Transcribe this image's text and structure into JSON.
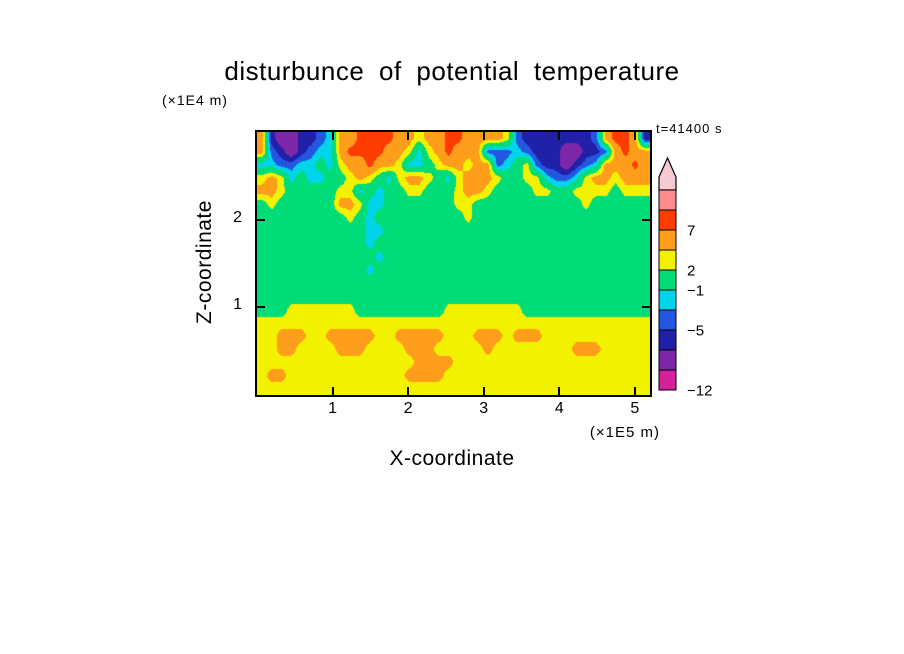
{
  "title": "disturbunce of potential temperature",
  "time_label": "t=41400 s",
  "axes": {
    "x_label": "X-coordinate",
    "x_unit": "(×1E5 m)",
    "y_label": "Z-coordinate",
    "y_unit": "(×1E4 m)",
    "x_ticks": [
      1,
      2,
      3,
      4,
      5
    ],
    "y_ticks": [
      1,
      2
    ]
  },
  "chart_data": {
    "type": "heatmap",
    "title": "disturbunce of potential temperature",
    "xlabel": "X-coordinate (×1E5 m)",
    "ylabel": "Z-coordinate (×1E4 m)",
    "time_label": "t=41400 s",
    "x_range": [
      0,
      5.2
    ],
    "z_range": [
      0,
      3.0
    ],
    "grid_on": false,
    "legend_position": "right-colorbar",
    "levels": [
      -12,
      -9,
      -7,
      -5,
      -3,
      -1,
      2,
      4,
      7,
      9,
      12
    ],
    "level_colors": [
      "#E6007E",
      "#D4219A",
      "#7D26A8",
      "#2020A8",
      "#2456E0",
      "#00D4E8",
      "#00DC78",
      "#F2F200",
      "#FF9E1B",
      "#FF3C00",
      "#FF8C8C",
      "#F7C9D3"
    ],
    "colorbar": {
      "arrow_color": "#F7C9D3",
      "labels": [
        "7",
        "2",
        "−1",
        "−5",
        "−12"
      ],
      "segments_top_to_bottom": [
        {
          "color": "#FF8C8C",
          "label_at_bottom": ""
        },
        {
          "color": "#FF3C00",
          "label_at_bottom": "7"
        },
        {
          "color": "#FF9E1B",
          "label_at_bottom": ""
        },
        {
          "color": "#F2F200",
          "label_at_bottom": "2"
        },
        {
          "color": "#00DC78",
          "label_at_bottom": "−1"
        },
        {
          "color": "#00D4E8",
          "label_at_bottom": ""
        },
        {
          "color": "#2456E0",
          "label_at_bottom": "−5"
        },
        {
          "color": "#2020A8",
          "label_at_bottom": ""
        },
        {
          "color": "#7D26A8",
          "label_at_bottom": ""
        },
        {
          "color": "#D4219A",
          "label_at_bottom": "−12"
        }
      ]
    },
    "grid": {
      "nx": 40,
      "nz": 20,
      "order": "rows top to bottom, columns left to right; values are disturbance of potential temperature",
      "values": [
        [
          5,
          -6,
          -9,
          -9,
          -6,
          -6,
          -4,
          -2,
          5,
          5,
          8,
          8,
          8,
          8,
          5,
          5,
          3,
          5,
          5,
          8,
          8,
          5,
          5,
          5,
          5,
          3,
          -4,
          -6,
          -6,
          -6,
          -6,
          -6,
          -6,
          -6,
          -4,
          5,
          8,
          8,
          5,
          -6
        ],
        [
          5,
          -4,
          -6,
          -9,
          -6,
          -4,
          -2,
          -2,
          5,
          8,
          8,
          8,
          8,
          5,
          5,
          3,
          -2,
          3,
          5,
          8,
          5,
          5,
          5,
          -4,
          -4,
          -4,
          -2,
          -4,
          -6,
          -6,
          -6,
          -9,
          -9,
          -6,
          -6,
          -4,
          5,
          8,
          5,
          5
        ],
        [
          -2,
          -2,
          -4,
          -4,
          -2,
          -2,
          0.5,
          -2,
          3,
          5,
          5,
          8,
          5,
          5,
          3,
          -2,
          -2,
          0.5,
          3,
          5,
          5,
          3,
          5,
          5,
          -4,
          -2,
          0.5,
          3,
          -4,
          -6,
          -6,
          -9,
          -6,
          -4,
          -2,
          5,
          5,
          5,
          8,
          5
        ],
        [
          3,
          5,
          3,
          -2,
          0.5,
          -2,
          -2,
          0.5,
          0.5,
          3,
          5,
          3,
          0.5,
          -2,
          3,
          5,
          5,
          3,
          0.5,
          -2,
          3,
          5,
          5,
          5,
          3,
          0.5,
          0.5,
          3,
          3,
          -2,
          -4,
          -4,
          -2,
          3,
          5,
          5,
          3,
          5,
          5,
          5
        ],
        [
          5,
          5,
          3,
          0.5,
          0.5,
          0.5,
          0.5,
          0.5,
          3,
          3,
          -2,
          0.5,
          -2,
          0.5,
          0.5,
          3,
          3,
          0.5,
          0.5,
          0.5,
          3,
          5,
          5,
          3,
          0.5,
          0.5,
          0.5,
          0.5,
          3,
          3,
          0.5,
          0.5,
          3,
          3,
          3,
          3,
          0.5,
          3,
          3,
          3
        ],
        [
          0.5,
          3,
          0.5,
          0.5,
          0.5,
          0.5,
          0.5,
          0.5,
          5,
          5,
          3,
          -2,
          -2,
          0.5,
          0.5,
          0.5,
          0.5,
          0.5,
          0.5,
          0.5,
          3,
          3,
          0.5,
          0.5,
          0.5,
          0.5,
          0.5,
          0.5,
          0.5,
          0.5,
          0.5,
          0.5,
          0.5,
          3,
          0.5,
          0.5,
          0.5,
          0.5,
          0.5,
          0.5
        ],
        [
          0.5,
          0.5,
          0.5,
          0.5,
          0.5,
          0.5,
          0.5,
          0.5,
          0.5,
          3,
          0.5,
          -2,
          0.5,
          0.5,
          0.5,
          0.5,
          0.5,
          0.5,
          0.5,
          0.5,
          0.5,
          3,
          0.5,
          0.5,
          0.5,
          0.5,
          0.5,
          0.5,
          0.5,
          0.5,
          0.5,
          0.5,
          0.5,
          0.5,
          0.5,
          0.5,
          0.5,
          0.5,
          0.5,
          0.5
        ],
        [
          0.5,
          0.5,
          0.5,
          0.5,
          0.5,
          0.5,
          0.5,
          0.5,
          0.5,
          0.5,
          0.5,
          -2,
          -2,
          0.5,
          0.5,
          0.5,
          0.5,
          0.5,
          0.5,
          0.5,
          0.5,
          0.5,
          0.5,
          0.5,
          0.5,
          0.5,
          0.5,
          0.5,
          0.5,
          0.5,
          0.5,
          0.5,
          0.5,
          0.5,
          0.5,
          0.5,
          0.5,
          0.5,
          0.5,
          0.5
        ],
        [
          0.5,
          0.5,
          0.5,
          0.5,
          0.5,
          0.5,
          0.5,
          0.5,
          0.5,
          0.5,
          0.5,
          -2,
          0.5,
          0.5,
          0.5,
          0.5,
          0.5,
          0.5,
          0.5,
          0.5,
          0.5,
          0.5,
          0.5,
          0.5,
          0.5,
          0.5,
          0.5,
          0.5,
          0.5,
          0.5,
          0.5,
          0.5,
          0.5,
          0.5,
          0.5,
          0.5,
          0.5,
          0.5,
          0.5,
          0.5
        ],
        [
          0.5,
          0.5,
          0.5,
          0.5,
          0.5,
          0.5,
          0.5,
          0.5,
          0.5,
          0.5,
          0.5,
          0.5,
          -2,
          0.5,
          0.5,
          0.5,
          0.5,
          0.5,
          0.5,
          0.5,
          0.5,
          0.5,
          0.5,
          0.5,
          0.5,
          0.5,
          0.5,
          0.5,
          0.5,
          0.5,
          0.5,
          0.5,
          0.5,
          0.5,
          0.5,
          0.5,
          0.5,
          0.5,
          0.5,
          0.5
        ],
        [
          0.5,
          0.5,
          0.5,
          0.5,
          0.5,
          0.5,
          0.5,
          0.5,
          0.5,
          0.5,
          0.5,
          -2,
          0.5,
          0.5,
          0.5,
          0.5,
          0.5,
          0.5,
          0.5,
          0.5,
          0.5,
          0.5,
          0.5,
          0.5,
          0.5,
          0.5,
          0.5,
          0.5,
          0.5,
          0.5,
          0.5,
          0.5,
          0.5,
          0.5,
          0.5,
          0.5,
          0.5,
          0.5,
          0.5,
          0.5
        ],
        [
          0.5,
          0.5,
          0.5,
          0.5,
          0.5,
          0.5,
          0.5,
          0.5,
          0.5,
          0.5,
          0.5,
          0.5,
          0.5,
          0.5,
          0.5,
          0.5,
          0.5,
          0.5,
          0.5,
          0.5,
          0.5,
          0.5,
          0.5,
          0.5,
          0.5,
          0.5,
          0.5,
          0.5,
          0.5,
          0.5,
          0.5,
          0.5,
          0.5,
          0.5,
          0.5,
          0.5,
          0.5,
          0.5,
          0.5,
          0.5
        ],
        [
          0.5,
          0.5,
          0.5,
          0.5,
          0.5,
          0.5,
          0.5,
          0.5,
          0.5,
          0.5,
          0.5,
          0.5,
          0.5,
          0.5,
          0.5,
          0.5,
          0.5,
          0.5,
          0.5,
          0.5,
          0.5,
          0.5,
          0.5,
          0.5,
          0.5,
          0.5,
          0.5,
          0.5,
          0.5,
          0.5,
          0.5,
          0.5,
          0.5,
          0.5,
          0.5,
          0.5,
          0.5,
          0.5,
          0.5,
          0.5
        ],
        [
          0.5,
          0.5,
          0.5,
          3,
          3,
          3,
          3,
          3,
          3,
          3,
          0.5,
          0.5,
          0.5,
          0.5,
          0.5,
          0.5,
          0.5,
          0.5,
          0.5,
          3,
          3,
          3,
          3,
          3,
          3,
          3,
          3,
          0.5,
          0.5,
          0.5,
          0.5,
          0.5,
          0.5,
          0.5,
          0.5,
          0.5,
          0.5,
          0.5,
          0.5,
          0.5
        ],
        [
          3,
          3,
          3,
          3,
          3,
          3,
          3,
          3,
          3,
          3,
          3,
          3,
          3,
          3,
          3,
          3,
          3,
          3,
          3,
          3,
          3,
          3,
          3,
          3,
          3,
          3,
          3,
          3,
          3,
          3,
          3,
          3,
          3,
          3,
          3,
          3,
          3,
          3,
          3,
          3
        ],
        [
          3,
          3,
          5,
          5,
          5,
          3,
          3,
          5,
          5,
          5,
          5,
          5,
          3,
          3,
          5,
          5,
          5,
          5,
          5,
          3,
          3,
          3,
          5,
          5,
          5,
          3,
          5,
          5,
          5,
          3,
          3,
          3,
          3,
          3,
          3,
          3,
          3,
          3,
          3,
          3
        ],
        [
          3,
          3,
          5,
          5,
          3,
          3,
          3,
          3,
          5,
          5,
          5,
          3,
          3,
          3,
          3,
          5,
          5,
          5,
          3,
          3,
          3,
          3,
          3,
          5,
          3,
          3,
          3,
          3,
          3,
          3,
          3,
          3,
          5,
          5,
          5,
          3,
          3,
          3,
          3,
          3
        ],
        [
          3,
          3,
          3,
          3,
          3,
          3,
          3,
          3,
          3,
          3,
          3,
          3,
          3,
          3,
          3,
          3,
          5,
          5,
          5,
          5,
          3,
          3,
          3,
          3,
          3,
          3,
          3,
          3,
          3,
          3,
          3,
          3,
          3,
          3,
          3,
          3,
          3,
          3,
          3,
          3
        ],
        [
          3,
          5,
          5,
          3,
          3,
          3,
          3,
          3,
          3,
          3,
          3,
          3,
          3,
          3,
          3,
          5,
          5,
          5,
          5,
          3,
          3,
          3,
          3,
          3,
          3,
          3,
          3,
          3,
          3,
          3,
          3,
          3,
          3,
          3,
          3,
          3,
          3,
          3,
          3,
          3
        ],
        [
          3,
          3,
          3,
          3,
          3,
          3,
          3,
          3,
          3,
          3,
          3,
          3,
          3,
          3,
          3,
          3,
          3,
          3,
          3,
          3,
          3,
          3,
          3,
          3,
          3,
          3,
          3,
          3,
          3,
          3,
          3,
          3,
          3,
          3,
          3,
          3,
          3,
          3,
          3,
          3
        ]
      ]
    }
  }
}
